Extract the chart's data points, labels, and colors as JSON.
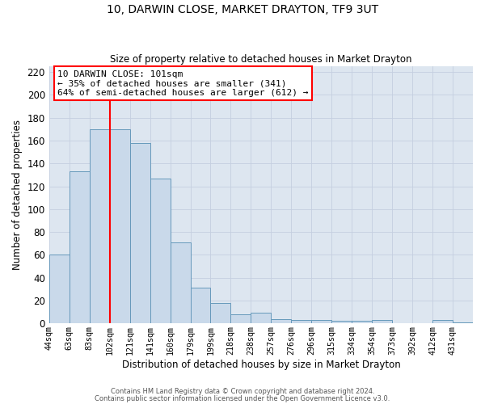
{
  "title": "10, DARWIN CLOSE, MARKET DRAYTON, TF9 3UT",
  "subtitle": "Size of property relative to detached houses in Market Drayton",
  "xlabel": "Distribution of detached houses by size in Market Drayton",
  "ylabel": "Number of detached properties",
  "bin_labels": [
    "44sqm",
    "63sqm",
    "83sqm",
    "102sqm",
    "121sqm",
    "141sqm",
    "160sqm",
    "179sqm",
    "199sqm",
    "218sqm",
    "238sqm",
    "257sqm",
    "276sqm",
    "296sqm",
    "315sqm",
    "334sqm",
    "354sqm",
    "373sqm",
    "392sqm",
    "412sqm",
    "431sqm"
  ],
  "bar_heights": [
    60,
    133,
    170,
    170,
    158,
    127,
    71,
    31,
    18,
    8,
    9,
    4,
    3,
    3,
    2,
    2,
    3,
    0,
    0,
    3,
    1
  ],
  "bar_facecolor": "#c9d9ea",
  "bar_edgecolor": "#6699bb",
  "grid_color": "#c5cfe0",
  "bg_color": "#dde6f0",
  "marker_bin_index": 3,
  "marker_label": "10 DARWIN CLOSE: 101sqm",
  "annotation_line1": "← 35% of detached houses are smaller (341)",
  "annotation_line2": "64% of semi-detached houses are larger (612) →",
  "ylim": [
    0,
    225
  ],
  "yticks": [
    0,
    20,
    40,
    60,
    80,
    100,
    120,
    140,
    160,
    180,
    200,
    220
  ],
  "footer1": "Contains HM Land Registry data © Crown copyright and database right 2024.",
  "footer2": "Contains public sector information licensed under the Open Government Licence v3.0."
}
